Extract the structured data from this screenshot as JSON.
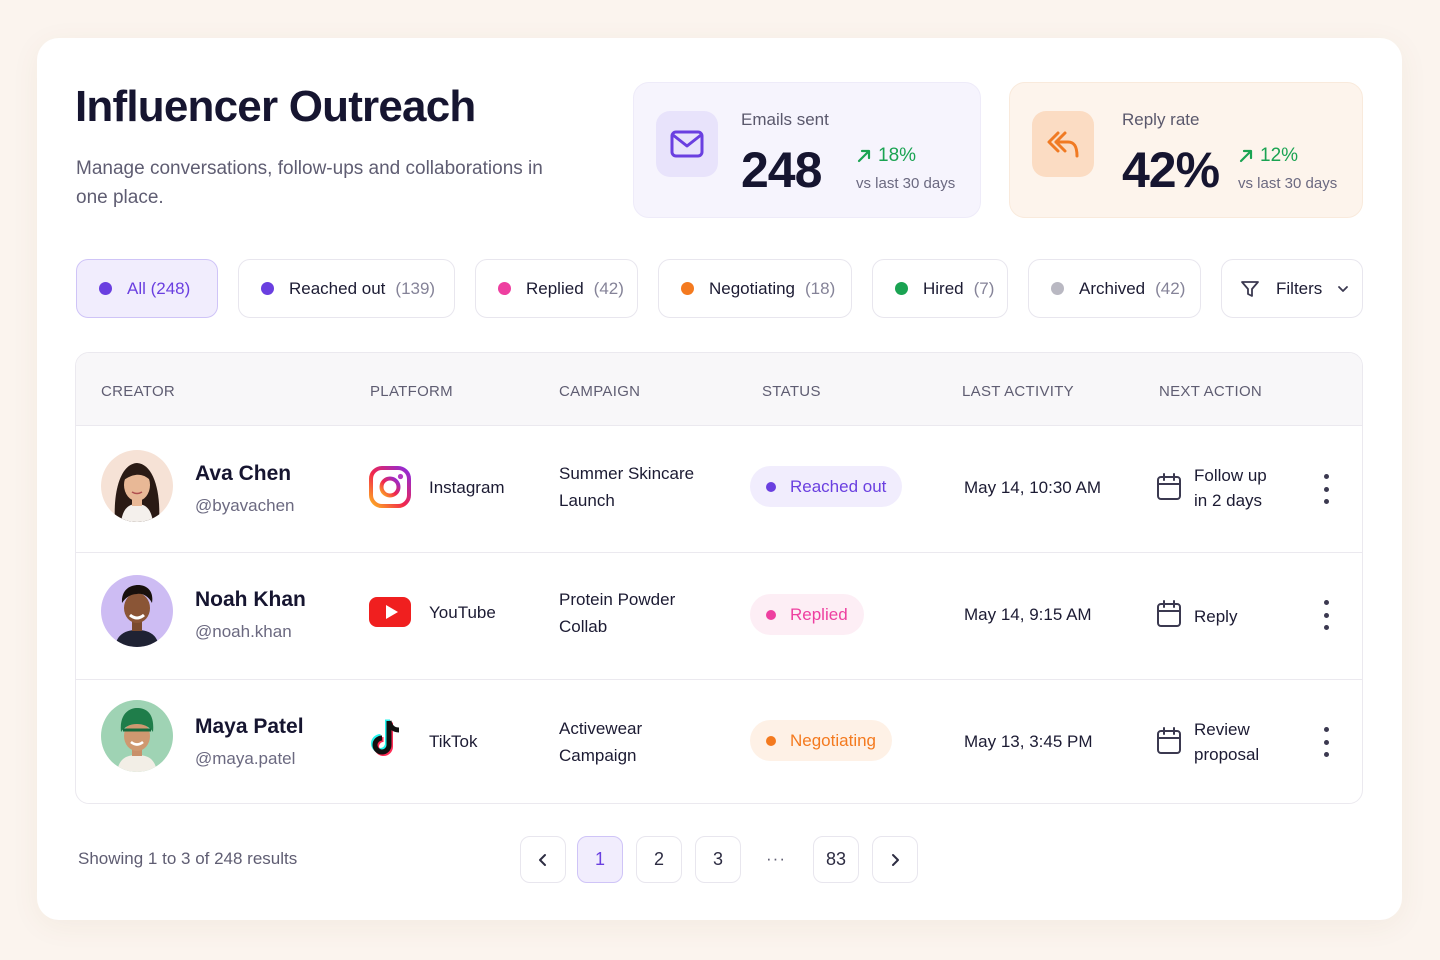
{
  "header": {
    "title": "Influencer Outreach",
    "subtitle": "Manage conversations, follow-ups and collaborations in one place."
  },
  "stats": {
    "emails": {
      "label": "Emails sent",
      "value": "248",
      "change": "18%",
      "period": "vs last 30 days",
      "icon": "mail-icon",
      "accent": "#6a3fe0"
    },
    "reply": {
      "label": "Reply rate",
      "value": "42%",
      "change": "12%",
      "period": "vs last 30 days",
      "icon": "reply-icon",
      "accent": "#f07a23"
    }
  },
  "filters": [
    {
      "label": "All (248)",
      "count": "",
      "color": "#6a3fe0",
      "active": true
    },
    {
      "label": "Reached out",
      "count": "(139)",
      "color": "#6a3fe0",
      "active": false
    },
    {
      "label": "Replied",
      "count": "(42)",
      "color": "#ee3fa0",
      "active": false
    },
    {
      "label": "Negotiating",
      "count": "(18)",
      "color": "#f47a1f",
      "active": false
    },
    {
      "label": "Hired",
      "count": "(7)",
      "color": "#1aa352",
      "active": false
    },
    {
      "label": "Archived",
      "count": "(42)",
      "color": "#b9b8c2",
      "active": false
    }
  ],
  "filters_button": {
    "label": "Filters",
    "icon": "filter-icon"
  },
  "table": {
    "columns": [
      "CREATOR",
      "PLATFORM",
      "CAMPAIGN",
      "STATUS",
      "LAST ACTIVITY",
      "NEXT ACTION"
    ],
    "rows": [
      {
        "name": "Ava Chen",
        "handle": "@byavachen",
        "platform": "Instagram",
        "platform_icon": "instagram-icon",
        "campaign": "Summer Skincare Launch",
        "status": "Reached out",
        "status_color": "#6a3fe0",
        "status_bg": "#f1edfd",
        "last_activity": "May 14, 10:30 AM",
        "next_action": "Follow up in 2 days"
      },
      {
        "name": "Noah Khan",
        "handle": "@noah.khan",
        "platform": "YouTube",
        "platform_icon": "youtube-icon",
        "campaign": "Protein Powder Collab",
        "status": "Replied",
        "status_color": "#ee3fa0",
        "status_bg": "#fdeef5",
        "last_activity": "May 14, 9:15 AM",
        "next_action": "Reply"
      },
      {
        "name": "Maya Patel",
        "handle": "@maya.patel",
        "platform": "TikTok",
        "platform_icon": "tiktok-icon",
        "campaign": "Activewear Campaign",
        "status": "Negotiating",
        "status_color": "#f47a1f",
        "status_bg": "#fef1e6",
        "last_activity": "May 13, 3:45 PM",
        "next_action": "Review proposal"
      }
    ]
  },
  "footer": {
    "results": "Showing 1 to 3 of 248 results",
    "pages": [
      "1",
      "2",
      "3",
      "83"
    ],
    "ellipsis": "···",
    "current_page": "1"
  }
}
